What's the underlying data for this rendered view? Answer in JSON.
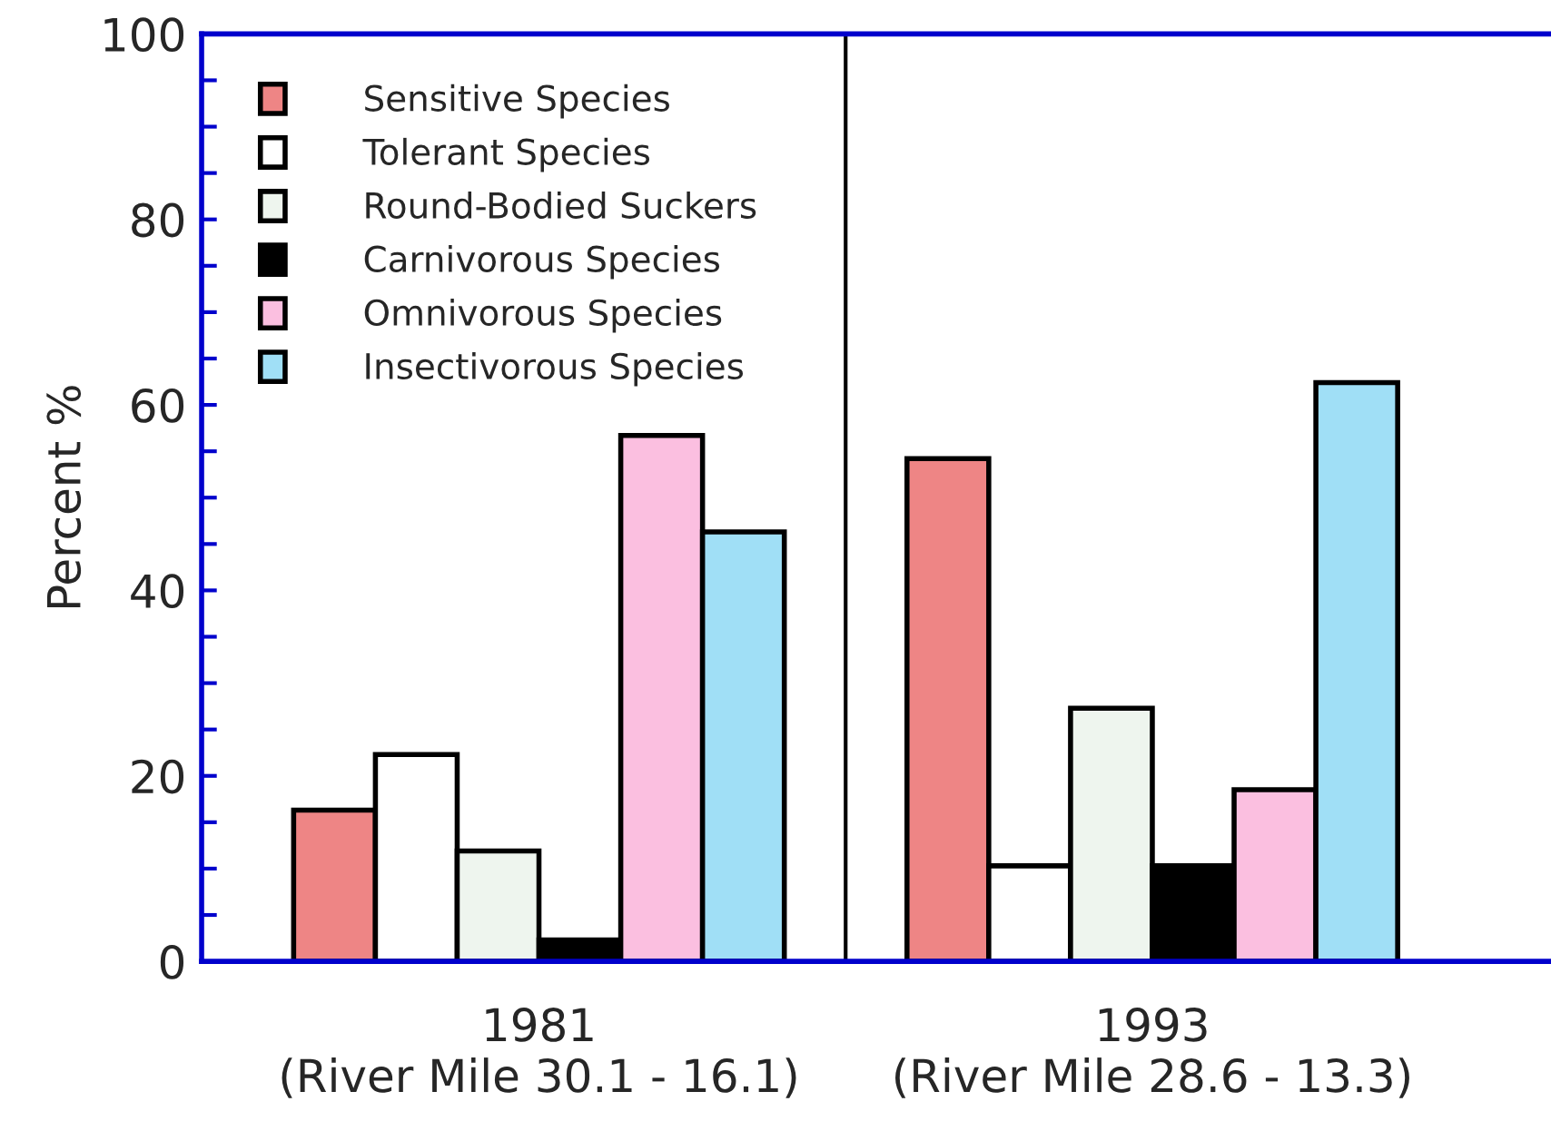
{
  "chart_data": {
    "type": "bar",
    "ylabel": "Percent %",
    "categories": [
      "1981\n(River Mile 30.1 - 16.1)",
      "1993\n(River Mile 28.6 - 13.3)"
    ],
    "series": [
      {
        "name": "Sensitive Species",
        "color": "#ee8585",
        "values": [
          16.3,
          54.2
        ]
      },
      {
        "name": "Tolerant Species",
        "color": "#ffffff",
        "values": [
          22.3,
          10.3
        ]
      },
      {
        "name": "Round-Bodied Suckers",
        "color": "#eef5ee",
        "values": [
          11.9,
          27.3
        ]
      },
      {
        "name": "Carnivorous Species",
        "color": "#000000",
        "values": [
          2.3,
          10.3
        ]
      },
      {
        "name": "Omnivorous Species",
        "color": "#fbbfe0",
        "values": [
          56.7,
          18.5
        ]
      },
      {
        "name": "Insectivorous Species",
        "color": "#a0dff6",
        "values": [
          46.3,
          62.4
        ]
      }
    ],
    "ylim": [
      0,
      100
    ],
    "yticks": [
      0,
      {
        "value": 5,
        "label": null
      },
      {
        "value": 10,
        "label": null
      },
      {
        "value": 15,
        "label": null
      },
      20,
      {
        "value": 25,
        "label": null
      },
      {
        "value": 30,
        "label": null
      },
      {
        "value": 35,
        "label": null
      },
      40,
      {
        "value": 45,
        "label": null
      },
      {
        "value": 50,
        "label": null
      },
      {
        "value": 55,
        "label": null
      },
      60,
      {
        "value": 65,
        "label": null
      },
      {
        "value": 70,
        "label": null
      },
      {
        "value": 75,
        "label": null
      },
      80,
      {
        "value": 85,
        "label": null
      },
      {
        "value": 90,
        "label": null
      },
      {
        "value": 95,
        "label": null
      },
      100
    ],
    "legend": "top left",
    "grid": false
  }
}
